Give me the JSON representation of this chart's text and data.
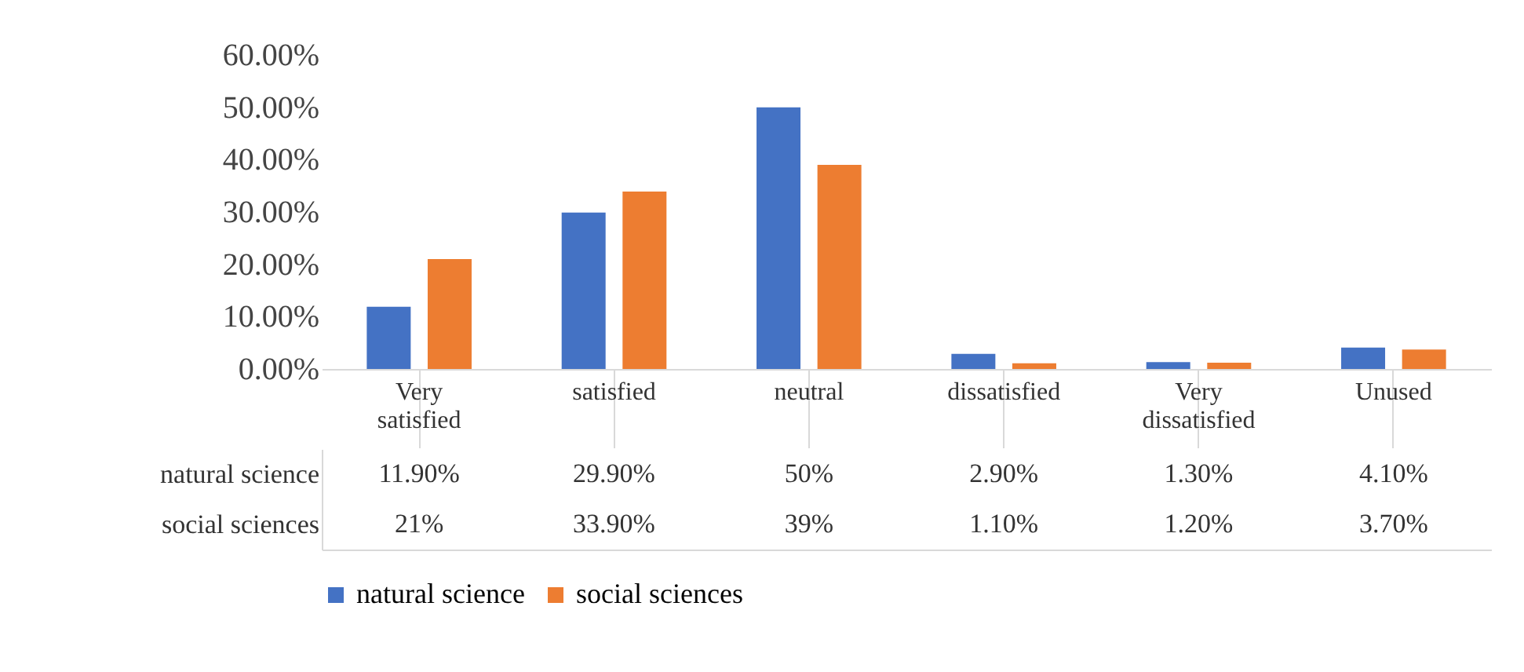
{
  "chart_data": {
    "type": "bar",
    "categories": [
      "Very satisfied",
      "satisfied",
      "neutral",
      "dissatisfied",
      "Very dissatisfied",
      "Unused"
    ],
    "series": [
      {
        "name": "natural science",
        "color": "#4472c4",
        "values": [
          11.9,
          29.9,
          50,
          2.9,
          1.3,
          4.1
        ],
        "value_labels": [
          "11.90%",
          "29.90%",
          "50%",
          "2.90%",
          "1.30%",
          "4.10%"
        ]
      },
      {
        "name": "social sciences",
        "color": "#ed7d31",
        "values": [
          21,
          33.9,
          39,
          1.1,
          1.2,
          3.7
        ],
        "value_labels": [
          "21%",
          "33.90%",
          "39%",
          "1.10%",
          "1.20%",
          "3.70%"
        ]
      }
    ],
    "ylim": [
      0,
      60
    ],
    "yticks": [
      {
        "value": 0,
        "label": "0.00%"
      },
      {
        "value": 10,
        "label": "10.00%"
      },
      {
        "value": 20,
        "label": "20.00%"
      },
      {
        "value": 30,
        "label": "30.00%"
      },
      {
        "value": 40,
        "label": "40.00%"
      },
      {
        "value": 50,
        "label": "50.00%"
      },
      {
        "value": 60,
        "label": "60.00%"
      }
    ],
    "legend": "bottom"
  }
}
